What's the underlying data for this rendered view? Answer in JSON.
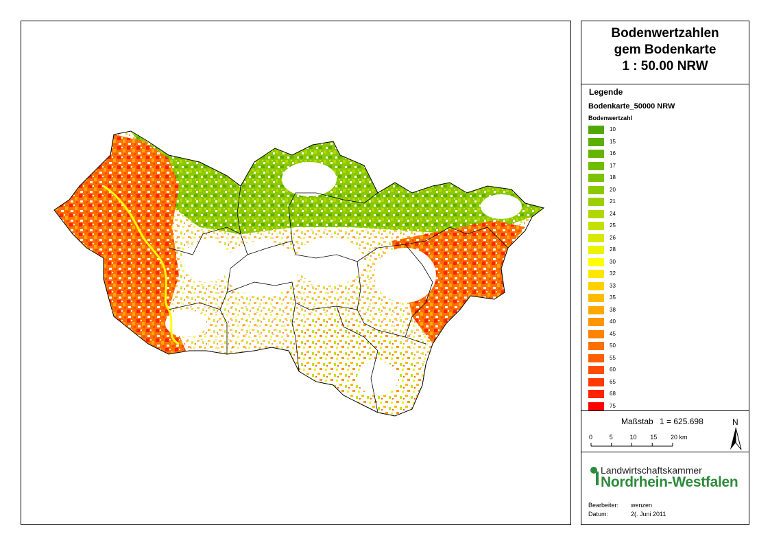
{
  "title": {
    "line1": "Bodenwertzahlen",
    "line2": "gem Bodenkarte",
    "line3": "1 : 50.00 NRW"
  },
  "legend": {
    "title": "Legende",
    "layer": "Bodenkarte_50000 NRW",
    "field": "Bodenwertzahl",
    "classes": [
      {
        "label": "10",
        "color": "#4fa800"
      },
      {
        "label": "15",
        "color": "#5aaf00"
      },
      {
        "label": "16",
        "color": "#64b500"
      },
      {
        "label": "17",
        "color": "#70bc00"
      },
      {
        "label": "18",
        "color": "#7dc200"
      },
      {
        "label": "20",
        "color": "#8bc800"
      },
      {
        "label": "21",
        "color": "#9ccf00"
      },
      {
        "label": "24",
        "color": "#b0d800"
      },
      {
        "label": "25",
        "color": "#c4e000"
      },
      {
        "label": "26",
        "color": "#d8e800"
      },
      {
        "label": "28",
        "color": "#ecf200"
      },
      {
        "label": "30",
        "color": "#ffff00"
      },
      {
        "label": "32",
        "color": "#ffe600"
      },
      {
        "label": "33",
        "color": "#ffd000"
      },
      {
        "label": "35",
        "color": "#ffbb00"
      },
      {
        "label": "38",
        "color": "#ffa800"
      },
      {
        "label": "40",
        "color": "#ff9500"
      },
      {
        "label": "45",
        "color": "#ff8200"
      },
      {
        "label": "50",
        "color": "#ff7000"
      },
      {
        "label": "55",
        "color": "#ff5e00"
      },
      {
        "label": "60",
        "color": "#ff4c00"
      },
      {
        "label": "65",
        "color": "#ff3a00"
      },
      {
        "label": "68",
        "color": "#ff2400"
      },
      {
        "label": "75",
        "color": "#ff0000"
      }
    ]
  },
  "scale": {
    "label": "Maßstab",
    "ratio": "1 = 625.698",
    "ticks": [
      "0",
      "5",
      "10",
      "15",
      "20 km"
    ],
    "north": "N"
  },
  "logo": {
    "line1": "Landwirtschaftskammer",
    "line2": "Nordrhein-Westfalen",
    "color": "#2e8b3c"
  },
  "meta": {
    "editor_label": "Bearbeiter:",
    "editor_value": "wenzen",
    "date_label": "Datum:",
    "date_value": "2(. Juni 2011"
  }
}
